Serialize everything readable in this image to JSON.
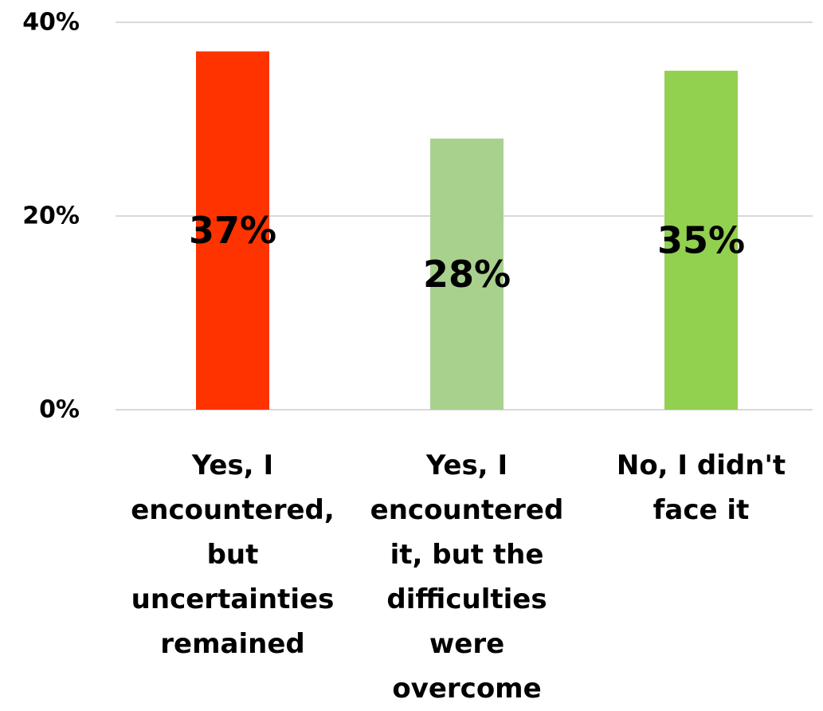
{
  "chart_data": {
    "type": "bar",
    "categories": [
      [
        "Yes, I",
        "encountered,",
        "but",
        "uncertainties",
        "remained"
      ],
      [
        "Yes, I",
        "encountered",
        "it, but the",
        "difficulties",
        "were",
        "overcome"
      ],
      [
        "No, I didn't",
        "face it"
      ]
    ],
    "values": [
      37,
      28,
      35
    ],
    "data_labels": [
      "37%",
      "28%",
      "35%"
    ],
    "colors": [
      "#ff3300",
      "#a9d18e",
      "#92d050"
    ],
    "yticks": [
      0,
      20,
      40
    ],
    "ytick_labels": [
      "0%",
      "20%",
      "40%"
    ],
    "ylim": [
      0,
      40
    ],
    "grid": true,
    "gridline_color": "#d9d9d9",
    "title": "",
    "xlabel": "",
    "ylabel": ""
  }
}
